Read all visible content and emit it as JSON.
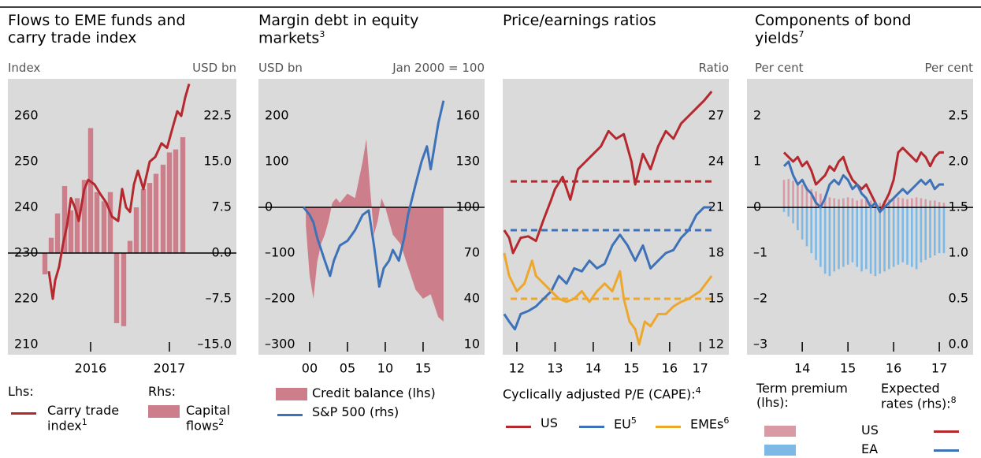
{
  "chart_data": [
    {
      "type": "combo",
      "title": "Flows to EME funds and carry trade index",
      "left_unit": "Index",
      "right_unit": "USD bn",
      "legend_headers": [
        "Lhs:",
        "Rhs:"
      ],
      "xlim": [
        2015.45,
        2018.35
      ],
      "xticks": [
        {
          "value": 2016.5,
          "label": "2016"
        },
        {
          "value": 2017.5,
          "label": "2017"
        }
      ],
      "ylim": [
        207.76,
        268.1
      ],
      "yticks": [
        210,
        220,
        230,
        240,
        250,
        260
      ],
      "y2lim": [
        -16.68,
        28.58
      ],
      "y2ticks": [
        {
          "value": -15,
          "label": "–15.0"
        },
        {
          "value": -7.5,
          "label": "–7.5"
        },
        {
          "value": 0,
          "label": "0.0"
        },
        7.5,
        {
          "value": 15,
          "label": "15.0"
        },
        22.5
      ],
      "series": [
        {
          "name": "Capital flows",
          "note": "2",
          "type": "bar",
          "axis": "y2",
          "color": "#cc7f8a",
          "x": [
            2015.92,
            2016.0,
            2016.08,
            2016.17,
            2016.25,
            2016.33,
            2016.42,
            2016.5,
            2016.58,
            2016.67,
            2016.75,
            2016.83,
            2016.92,
            2017.0,
            2017.08,
            2017.17,
            2017.25,
            2017.33,
            2017.42,
            2017.5,
            2017.58,
            2017.67
          ],
          "values": [
            -3.5,
            2.5,
            6.5,
            11,
            7,
            9,
            12,
            20.5,
            10,
            8.5,
            10,
            -11.5,
            -12,
            2,
            7.5,
            10.5,
            11.5,
            13,
            14.5,
            16.5,
            17,
            19
          ]
        },
        {
          "name": "Carry trade index",
          "note": "1",
          "type": "line",
          "axis": "y",
          "color": "#b5282e",
          "x": [
            2015.97,
            2016.02,
            2016.05,
            2016.1,
            2016.15,
            2016.2,
            2016.25,
            2016.3,
            2016.35,
            2016.42,
            2016.47,
            2016.55,
            2016.62,
            2016.7,
            2016.77,
            2016.85,
            2016.9,
            2016.95,
            2017.0,
            2017.05,
            2017.1,
            2017.17,
            2017.25,
            2017.32,
            2017.4,
            2017.47,
            2017.55,
            2017.6,
            2017.65,
            2017.7,
            2017.75
          ],
          "values": [
            226,
            220,
            224,
            227,
            232,
            236,
            242,
            240,
            237,
            244,
            246,
            245,
            243,
            241,
            238,
            237,
            244,
            240,
            239,
            245,
            248,
            244,
            250,
            251,
            254,
            253,
            258,
            261,
            260,
            264,
            267
          ]
        }
      ]
    },
    {
      "type": "combo",
      "title": "Margin debt in equity markets",
      "title_note": "3",
      "left_unit": "USD bn",
      "right_unit": "Jan 2000 = 100",
      "xlim": [
        1993.23,
        2023.13
      ],
      "xticks": [
        {
          "value": 2000,
          "label": "00"
        },
        {
          "value": 2005,
          "label": "05"
        },
        {
          "value": 2010,
          "label": "10"
        },
        {
          "value": 2015,
          "label": "15"
        }
      ],
      "ylim": [
        -322.4,
        281.0
      ],
      "yticks": [
        {
          "value": -300,
          "label": "–300"
        },
        {
          "value": -200,
          "label": "–200"
        },
        {
          "value": -100,
          "label": "–100"
        },
        0,
        100,
        200
      ],
      "y2lim": [
        3.28,
        184.31
      ],
      "y2ticks": [
        10,
        40,
        70,
        100,
        130,
        160
      ],
      "series": [
        {
          "name": "Credit balance (lhs)",
          "type": "area",
          "axis": "y",
          "color": "#cc7f8a",
          "x": [
            1999.5,
            2000,
            2000.5,
            2001,
            2001.5,
            2002,
            2002.5,
            2003,
            2003.5,
            2004,
            2005,
            2006,
            2006.5,
            2007,
            2007.5,
            2008,
            2008.5,
            2009,
            2009.5,
            2010,
            2010.5,
            2011,
            2012,
            2013,
            2014,
            2015,
            2016,
            2017,
            2017.7
          ],
          "values": [
            -40,
            -150,
            -200,
            -120,
            -80,
            -60,
            -30,
            10,
            20,
            10,
            30,
            20,
            60,
            100,
            150,
            40,
            -60,
            -30,
            20,
            0,
            -30,
            -60,
            -80,
            -130,
            -180,
            -200,
            -190,
            -240,
            -250
          ]
        },
        {
          "name": "S&P 500 (rhs)",
          "type": "line",
          "axis": "y2",
          "color": "#3d72b8",
          "x": [
            1999.2,
            2000,
            2000.5,
            2001,
            2002,
            2002.7,
            2003.2,
            2004,
            2005,
            2006,
            2007,
            2007.8,
            2008.5,
            2009.2,
            2009.8,
            2010.5,
            2011,
            2011.8,
            2012.5,
            2013,
            2014,
            2014.8,
            2015.5,
            2016,
            2016.5,
            2017,
            2017.7
          ],
          "values": [
            100,
            95,
            90,
            80,
            65,
            55,
            65,
            75,
            78,
            85,
            95,
            98,
            75,
            48,
            60,
            65,
            72,
            65,
            80,
            95,
            115,
            130,
            140,
            125,
            140,
            155,
            170
          ]
        }
      ]
    },
    {
      "type": "combo",
      "title": "Price/earnings ratios",
      "right_unit": "Ratio",
      "legend_header": "Cyclically adjusted P/E (CAPE):",
      "legend_header_note": "4",
      "xlim": [
        2012.13,
        2018.05
      ],
      "xticks": [
        {
          "value": 2012.5,
          "label": "12"
        },
        {
          "value": 2013.5,
          "label": "13"
        },
        {
          "value": 2014.5,
          "label": "14"
        },
        {
          "value": 2015.5,
          "label": "15"
        },
        {
          "value": 2016.5,
          "label": "16"
        },
        {
          "value": 2017.3,
          "label": "17"
        }
      ],
      "y2lim": [
        11.33,
        29.43
      ],
      "y2ticks": [
        12,
        15,
        18,
        21,
        24,
        27
      ],
      "series": [
        {
          "name": "US",
          "type": "line",
          "axis": "y2",
          "color": "#b5282e",
          "average": 22.7,
          "x": [
            2012.17,
            2012.3,
            2012.4,
            2012.6,
            2012.8,
            2013,
            2013.2,
            2013.4,
            2013.5,
            2013.7,
            2013.9,
            2014.1,
            2014.3,
            2014.5,
            2014.7,
            2014.9,
            2015.1,
            2015.3,
            2015.5,
            2015.6,
            2015.8,
            2016,
            2016.2,
            2016.4,
            2016.6,
            2016.8,
            2017,
            2017.2,
            2017.4,
            2017.6
          ],
          "values": [
            19.5,
            19,
            18,
            19,
            19.1,
            18.8,
            20.2,
            21.5,
            22.2,
            23,
            21.5,
            23.5,
            24,
            24.5,
            25,
            26,
            25.5,
            25.8,
            24,
            22.5,
            24.5,
            23.5,
            25,
            26,
            25.5,
            26.5,
            27,
            27.5,
            28,
            28.6
          ]
        },
        {
          "name": "EU",
          "note": "5",
          "type": "line",
          "axis": "y2",
          "color": "#3d72b8",
          "average": 19.5,
          "x": [
            2012.17,
            2012.3,
            2012.45,
            2012.6,
            2012.8,
            2013,
            2013.2,
            2013.4,
            2013.6,
            2013.8,
            2014,
            2014.2,
            2014.4,
            2014.6,
            2014.8,
            2015,
            2015.2,
            2015.4,
            2015.6,
            2015.8,
            2016,
            2016.2,
            2016.4,
            2016.6,
            2016.8,
            2017,
            2017.2,
            2017.4,
            2017.6
          ],
          "values": [
            14,
            13.5,
            13,
            14,
            14.2,
            14.5,
            15,
            15.5,
            16.5,
            16,
            17,
            16.8,
            17.5,
            17,
            17.3,
            18.5,
            19.2,
            18.5,
            17.5,
            18.5,
            17,
            17.5,
            18,
            18.2,
            19,
            19.5,
            20.5,
            21,
            21
          ]
        },
        {
          "name": "EMEs",
          "note": "6",
          "type": "line",
          "axis": "y2",
          "color": "#eca72c",
          "average": 15,
          "x": [
            2012.17,
            2012.3,
            2012.5,
            2012.7,
            2012.9,
            2013,
            2013.2,
            2013.4,
            2013.6,
            2013.8,
            2014,
            2014.2,
            2014.4,
            2014.6,
            2014.8,
            2015,
            2015.2,
            2015.3,
            2015.45,
            2015.6,
            2015.7,
            2015.85,
            2016,
            2016.2,
            2016.4,
            2016.6,
            2016.8,
            2017,
            2017.3,
            2017.6
          ],
          "values": [
            18,
            16.5,
            15.5,
            16,
            17.5,
            16.5,
            16,
            15.5,
            15,
            14.8,
            15,
            15.5,
            14.8,
            15.5,
            16,
            15.5,
            16.8,
            15,
            13.5,
            13,
            12,
            13.5,
            13.2,
            14,
            14,
            14.5,
            14.8,
            15,
            15.5,
            16.5
          ]
        }
      ]
    },
    {
      "type": "combo",
      "title": "Components of bond yields",
      "title_note": "7",
      "left_unit": "Per cent",
      "right_unit": "Per cent",
      "legend_headers": [
        "Term premium (lhs):",
        "Expected rates (rhs):"
      ],
      "legend_header_note": "8",
      "xlim": [
        2013.29,
        2018.24
      ],
      "xticks": [
        {
          "value": 2014.5,
          "label": "14"
        },
        {
          "value": 2015.5,
          "label": "15"
        },
        {
          "value": 2016.5,
          "label": "16"
        },
        {
          "value": 2017.5,
          "label": "17"
        }
      ],
      "ylim": [
        -3.22,
        2.81
      ],
      "yticks": [
        {
          "value": -3,
          "label": "–3"
        },
        {
          "value": -2,
          "label": "–2"
        },
        {
          "value": -1,
          "label": "–1"
        },
        0,
        1,
        2
      ],
      "y2lim": [
        -0.112,
        2.905
      ],
      "y2ticks": [
        {
          "value": 0,
          "label": "0.0"
        },
        0.5,
        {
          "value": 1,
          "label": "1.0"
        },
        1.5,
        {
          "value": 2,
          "label": "2.0"
        },
        2.5
      ],
      "x": [
        2014.1,
        2014.2,
        2014.3,
        2014.4,
        2014.5,
        2014.6,
        2014.7,
        2014.8,
        2014.9,
        2015.0,
        2015.1,
        2015.2,
        2015.3,
        2015.4,
        2015.5,
        2015.6,
        2015.7,
        2015.8,
        2015.9,
        2016.0,
        2016.1,
        2016.2,
        2016.3,
        2016.4,
        2016.5,
        2016.6,
        2016.7,
        2016.8,
        2016.9,
        2017.0,
        2017.1,
        2017.2,
        2017.3,
        2017.4,
        2017.5,
        2017.6
      ],
      "series": [
        {
          "name": "US",
          "term_premium": {
            "type": "bar",
            "axis": "y",
            "color": "#d99aa5",
            "values": [
              0.6,
              0.62,
              0.58,
              0.55,
              0.5,
              0.45,
              0.4,
              0.35,
              0.3,
              0.25,
              0.22,
              0.2,
              0.18,
              0.2,
              0.22,
              0.2,
              0.15,
              0.18,
              0.2,
              0.15,
              0.12,
              0.1,
              0.15,
              0.18,
              0.2,
              0.22,
              0.2,
              0.18,
              0.2,
              0.22,
              0.2,
              0.18,
              0.15,
              0.15,
              0.12,
              0.1
            ]
          },
          "expected_rates": {
            "type": "line",
            "axis": "y2",
            "color": "#b5282e",
            "values": [
              2.1,
              2.05,
              2.0,
              2.05,
              1.95,
              2.0,
              1.9,
              1.75,
              1.8,
              1.85,
              1.95,
              1.9,
              2.0,
              2.05,
              1.9,
              1.8,
              1.75,
              1.7,
              1.75,
              1.65,
              1.55,
              1.45,
              1.55,
              1.65,
              1.8,
              2.1,
              2.15,
              2.1,
              2.05,
              2.0,
              2.1,
              2.05,
              1.95,
              2.05,
              2.1,
              2.1
            ]
          }
        },
        {
          "name": "EA",
          "term_premium": {
            "type": "bar",
            "axis": "y",
            "color": "#7db9e6",
            "values": [
              -0.1,
              -0.2,
              -0.35,
              -0.5,
              -0.7,
              -0.85,
              -1.0,
              -1.15,
              -1.3,
              -1.45,
              -1.5,
              -1.4,
              -1.35,
              -1.3,
              -1.25,
              -1.2,
              -1.3,
              -1.4,
              -1.35,
              -1.45,
              -1.5,
              -1.45,
              -1.4,
              -1.35,
              -1.3,
              -1.25,
              -1.2,
              -1.25,
              -1.3,
              -1.35,
              -1.2,
              -1.15,
              -1.1,
              -1.05,
              -1.0,
              -1.0
            ]
          },
          "expected_rates": {
            "type": "line",
            "axis": "y2",
            "color": "#3d72b8",
            "values": [
              1.95,
              2.0,
              1.85,
              1.75,
              1.8,
              1.7,
              1.65,
              1.55,
              1.5,
              1.6,
              1.75,
              1.8,
              1.75,
              1.85,
              1.8,
              1.7,
              1.75,
              1.65,
              1.6,
              1.5,
              1.55,
              1.45,
              1.5,
              1.55,
              1.6,
              1.65,
              1.7,
              1.65,
              1.7,
              1.75,
              1.8,
              1.75,
              1.8,
              1.7,
              1.75,
              1.75
            ]
          }
        }
      ]
    }
  ]
}
